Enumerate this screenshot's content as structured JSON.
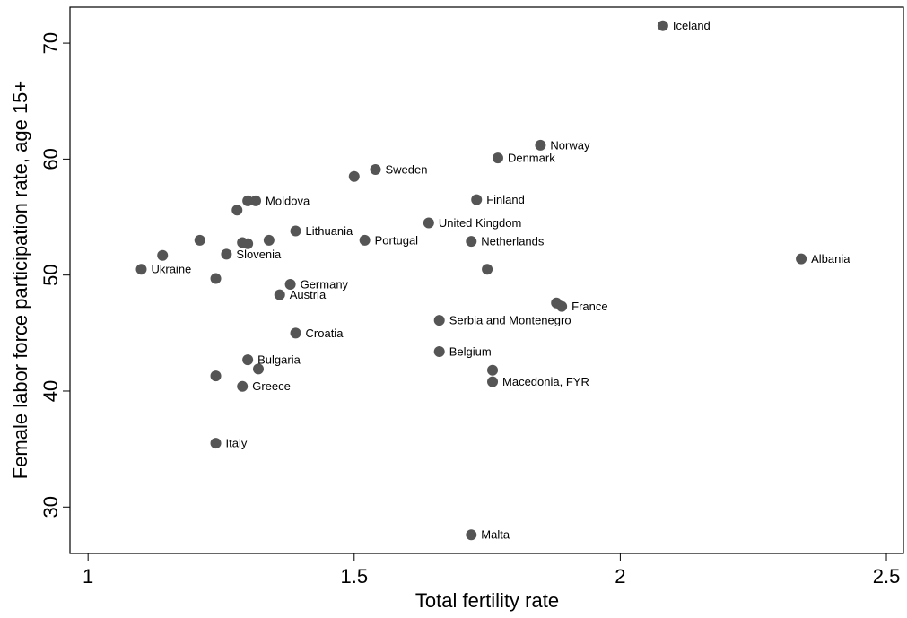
{
  "chart_data": {
    "type": "scatter",
    "x_label": "Total fertility rate",
    "y_label": "Female labor force participation rate, age 15+",
    "xlim": [
      0.966,
      2.532
    ],
    "ylim": [
      26,
      73.1
    ],
    "xticks": [
      1,
      1.5,
      2,
      2.5
    ],
    "yticks": [
      30,
      40,
      50,
      60,
      70
    ],
    "color": "#555555",
    "labels": [
      "Iceland",
      "Norway",
      "Denmark",
      "Sweden",
      null,
      "Finland",
      null,
      "Moldova",
      null,
      "United Kingdom",
      "Lithuania",
      "Portugal",
      "Netherlands",
      null,
      null,
      null,
      null,
      null,
      "Slovenia",
      "Albania",
      "Ukraine",
      null,
      null,
      "Germany",
      "Austria",
      null,
      "France",
      "Serbia and Montenegro",
      "Croatia",
      "Belgium",
      "Bulgaria",
      null,
      null,
      null,
      "Macedonia, FYR",
      "Greece",
      "Italy",
      "Malta"
    ],
    "x": [
      2.08,
      1.85,
      1.77,
      1.54,
      1.5,
      1.73,
      1.3,
      1.315,
      1.28,
      1.64,
      1.39,
      1.52,
      1.72,
      1.21,
      1.34,
      1.29,
      1.3,
      1.14,
      1.26,
      2.34,
      1.1,
      1.75,
      1.24,
      1.38,
      1.36,
      1.88,
      1.89,
      1.66,
      1.39,
      1.66,
      1.3,
      1.32,
      1.24,
      1.76,
      1.76,
      1.29,
      1.24,
      1.72
    ],
    "y": [
      71.5,
      61.2,
      60.1,
      59.1,
      58.5,
      56.5,
      56.4,
      56.4,
      55.6,
      54.5,
      53.8,
      53.0,
      52.9,
      53.0,
      53.0,
      52.8,
      52.7,
      51.7,
      51.8,
      51.4,
      50.5,
      50.5,
      49.7,
      49.2,
      48.3,
      47.6,
      47.3,
      46.1,
      45.0,
      43.4,
      42.7,
      41.9,
      41.3,
      41.8,
      40.8,
      40.4,
      35.5,
      27.6
    ]
  }
}
